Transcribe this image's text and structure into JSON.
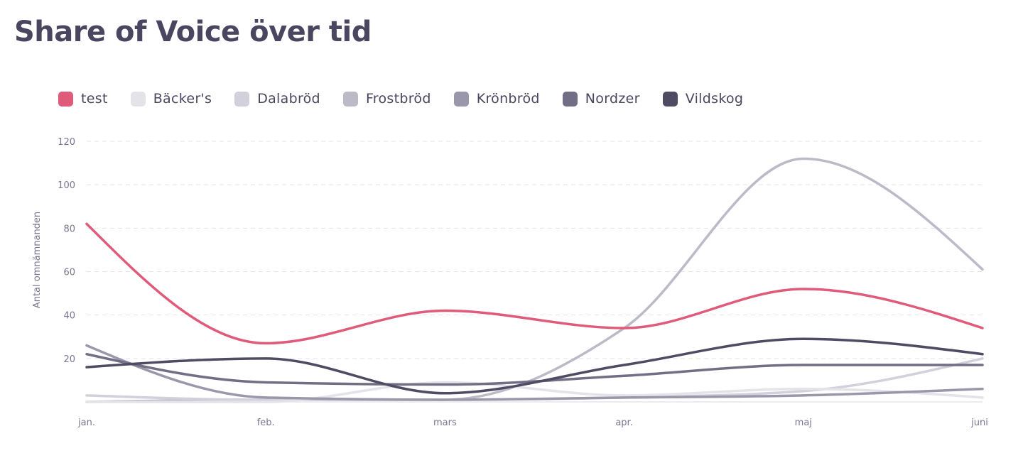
{
  "title": "Share of Voice över tid",
  "chart_data": {
    "type": "line",
    "title": "Share of Voice över tid",
    "xlabel": "",
    "ylabel": "Antal omnämnanden",
    "categories": [
      "jan.",
      "feb.",
      "mars",
      "apr.",
      "maj",
      "juni"
    ],
    "ylim": [
      0,
      120
    ],
    "yticks": [
      20,
      40,
      60,
      80,
      100,
      120
    ],
    "grid": true,
    "legend_position": "top-left",
    "curve": "smooth",
    "series": [
      {
        "name": "Frostbröd",
        "color": "#bdbac8",
        "values": [
          0,
          1,
          1,
          34,
          112,
          61
        ]
      },
      {
        "name": "Dalabröd",
        "color": "#d2d0db",
        "values": [
          3,
          1,
          1,
          2,
          5,
          20
        ]
      },
      {
        "name": "Bäcker's",
        "color": "#e4e3ea",
        "values": [
          0,
          0,
          9,
          3,
          6,
          2
        ]
      },
      {
        "name": "Krönbröd",
        "color": "#9a97aa",
        "values": [
          26,
          2,
          1,
          2,
          3,
          6
        ]
      },
      {
        "name": "Nordzer",
        "color": "#726e85",
        "values": [
          22,
          9,
          8,
          12,
          17,
          17
        ]
      },
      {
        "name": "Vildskog",
        "color": "#4f4b63",
        "values": [
          16,
          20,
          4,
          17,
          29,
          22
        ]
      },
      {
        "name": "test",
        "color": "#e05a7a",
        "values": [
          82,
          27,
          42,
          34,
          52,
          34
        ]
      }
    ]
  },
  "legend": [
    {
      "label": "test",
      "color": "#e05a7a"
    },
    {
      "label": "Bäcker's",
      "color": "#e4e3ea"
    },
    {
      "label": "Dalabröd",
      "color": "#d2d0db"
    },
    {
      "label": "Frostbröd",
      "color": "#bdbac8"
    },
    {
      "label": "Krönbröd",
      "color": "#9a97aa"
    },
    {
      "label": "Nordzer",
      "color": "#726e85"
    },
    {
      "label": "Vildskog",
      "color": "#4f4b63"
    }
  ]
}
